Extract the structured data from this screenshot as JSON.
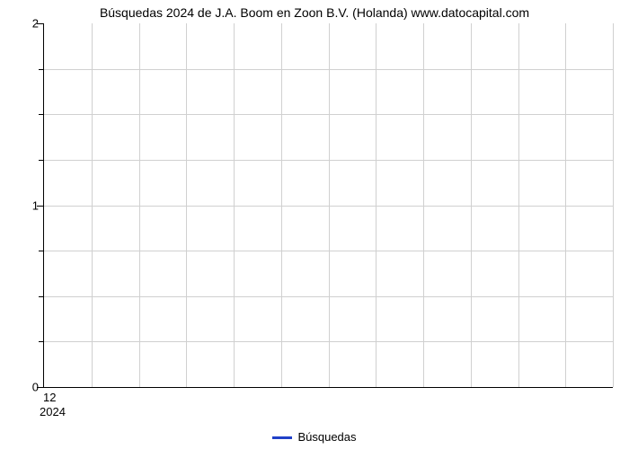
{
  "chart": {
    "type": "line",
    "title": "Búsquedas 2024 de J.A. Boom en Zoon B.V. (Holanda) www.datocapital.com",
    "title_fontsize": 14,
    "title_color": "#000000",
    "background_color": "#ffffff",
    "plot_border_color": "#000000",
    "grid_color": "#d0d0d0",
    "x": {
      "n_major_columns": 12,
      "month_label": "12",
      "year_label": "2024"
    },
    "y": {
      "min": 0,
      "max": 2,
      "major_ticks": [
        0,
        1,
        2
      ],
      "minor_steps": 4
    },
    "legend": {
      "label": "Búsquedas",
      "color": "#2040c8",
      "line_width": 3
    },
    "series": {
      "name": "Búsquedas",
      "color": "#2040c8",
      "values": []
    }
  }
}
